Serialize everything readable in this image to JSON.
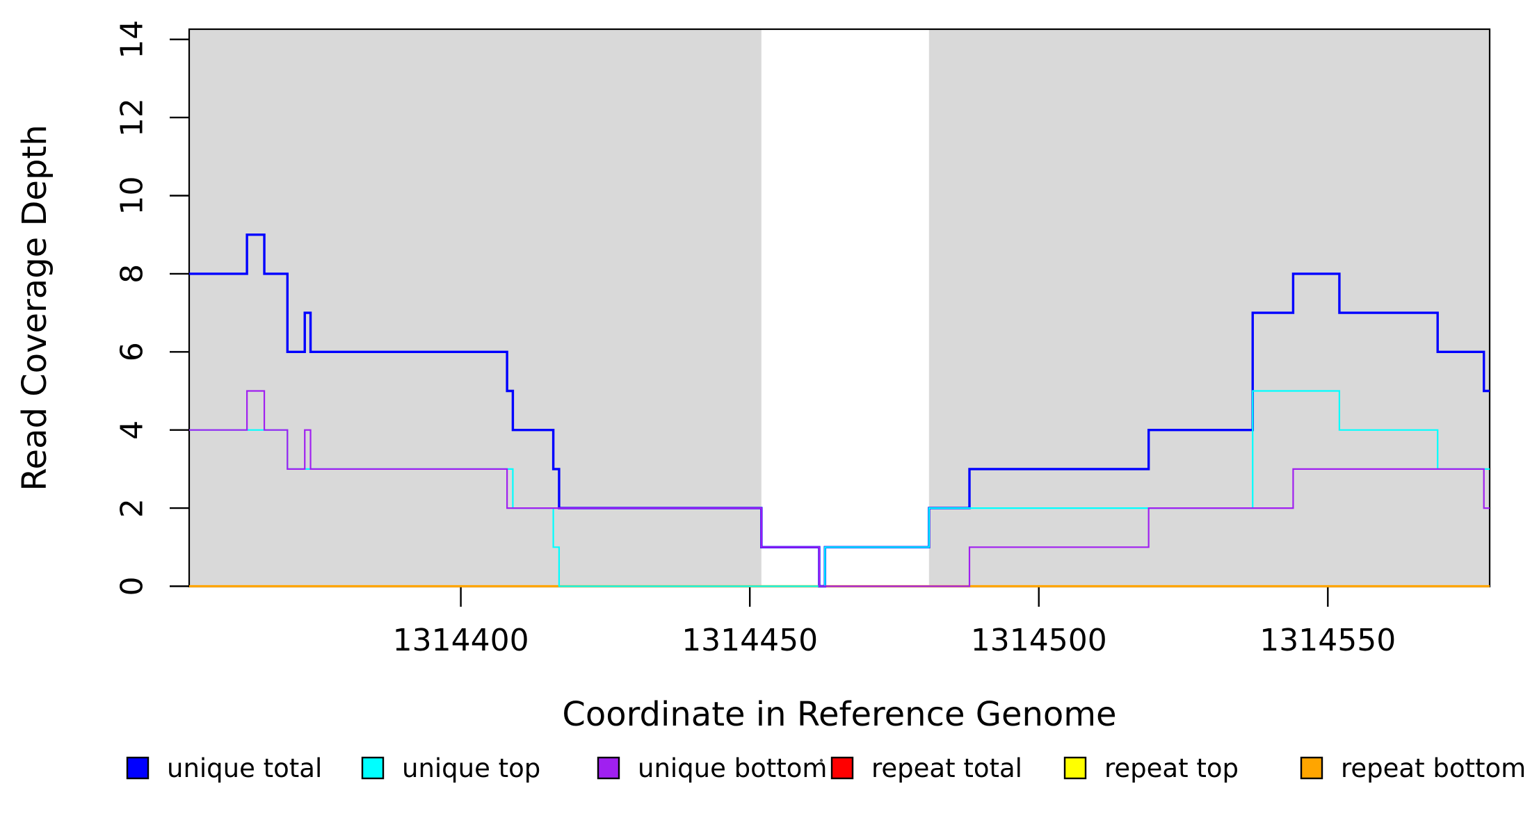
{
  "figure": {
    "background": "#ffffff",
    "axis_color": "#000000"
  },
  "chart_data": {
    "type": "line",
    "subtype": "step-coverage",
    "title": "",
    "xlabel": "Coordinate in Reference Genome",
    "ylabel": "Read Coverage Depth",
    "xlim": [
      1314353,
      1314578
    ],
    "ylim": [
      0,
      14.27
    ],
    "x_ticks": [
      "1314400",
      "1314450",
      "1314500",
      "1314550"
    ],
    "x_tick_values": [
      1314400,
      1314450,
      1314500,
      1314550
    ],
    "y_ticks": [
      "0",
      "2",
      "4",
      "6",
      "8",
      "10",
      "12",
      "14"
    ],
    "y_tick_values": [
      0,
      2,
      4,
      6,
      8,
      10,
      12,
      14
    ],
    "grid": false,
    "legend_position": "bottom",
    "shaded_regions": {
      "color": "#D9D9D9",
      "ranges": [
        [
          1314353,
          1314452
        ],
        [
          1314481,
          1314578
        ]
      ]
    },
    "series": [
      {
        "name": "unique total",
        "color": "#0000FF",
        "segments": [
          [
            1314353,
            1314363,
            8
          ],
          [
            1314363,
            1314366,
            9
          ],
          [
            1314366,
            1314370,
            8
          ],
          [
            1314370,
            1314373,
            6
          ],
          [
            1314373,
            1314374,
            7
          ],
          [
            1314374,
            1314408,
            6
          ],
          [
            1314408,
            1314409,
            5
          ],
          [
            1314409,
            1314416,
            4
          ],
          [
            1314416,
            1314417,
            3
          ],
          [
            1314417,
            1314452,
            2
          ],
          [
            1314452,
            1314462,
            1
          ],
          [
            1314462,
            1314463,
            0
          ],
          [
            1314463,
            1314481,
            1
          ],
          [
            1314481,
            1314488,
            2
          ],
          [
            1314488,
            1314519,
            3
          ],
          [
            1314519,
            1314537,
            4
          ],
          [
            1314537,
            1314544,
            7
          ],
          [
            1314544,
            1314552,
            8
          ],
          [
            1314552,
            1314569,
            7
          ],
          [
            1314569,
            1314577,
            6
          ],
          [
            1314577,
            1314578,
            5
          ]
        ]
      },
      {
        "name": "unique top",
        "color": "#00FFFF",
        "segments": [
          [
            1314353,
            1314370,
            4
          ],
          [
            1314370,
            1314409,
            3
          ],
          [
            1314409,
            1314416,
            2
          ],
          [
            1314416,
            1314417,
            1
          ],
          [
            1314417,
            1314463,
            0
          ],
          [
            1314463,
            1314481,
            1
          ],
          [
            1314481,
            1314537,
            2
          ],
          [
            1314537,
            1314552,
            5
          ],
          [
            1314552,
            1314569,
            4
          ],
          [
            1314569,
            1314578,
            3
          ]
        ]
      },
      {
        "name": "unique bottom",
        "color": "#A020F0",
        "segments": [
          [
            1314353,
            1314363,
            4
          ],
          [
            1314363,
            1314366,
            5
          ],
          [
            1314366,
            1314370,
            4
          ],
          [
            1314370,
            1314373,
            3
          ],
          [
            1314373,
            1314374,
            4
          ],
          [
            1314374,
            1314408,
            3
          ],
          [
            1314408,
            1314452,
            2
          ],
          [
            1314452,
            1314462,
            1
          ],
          [
            1314462,
            1314488,
            0
          ],
          [
            1314488,
            1314519,
            1
          ],
          [
            1314519,
            1314544,
            2
          ],
          [
            1314544,
            1314577,
            3
          ],
          [
            1314577,
            1314578,
            2
          ]
        ]
      },
      {
        "name": "repeat total",
        "color": "#FF0000",
        "segments": [
          [
            1314353,
            1314578,
            0
          ]
        ]
      },
      {
        "name": "repeat top",
        "color": "#FFFF00",
        "segments": [
          [
            1314353,
            1314578,
            0
          ]
        ]
      },
      {
        "name": "repeat bottom",
        "color": "#FFA500",
        "segments": [
          [
            1314353,
            1314578,
            0
          ]
        ]
      }
    ]
  }
}
